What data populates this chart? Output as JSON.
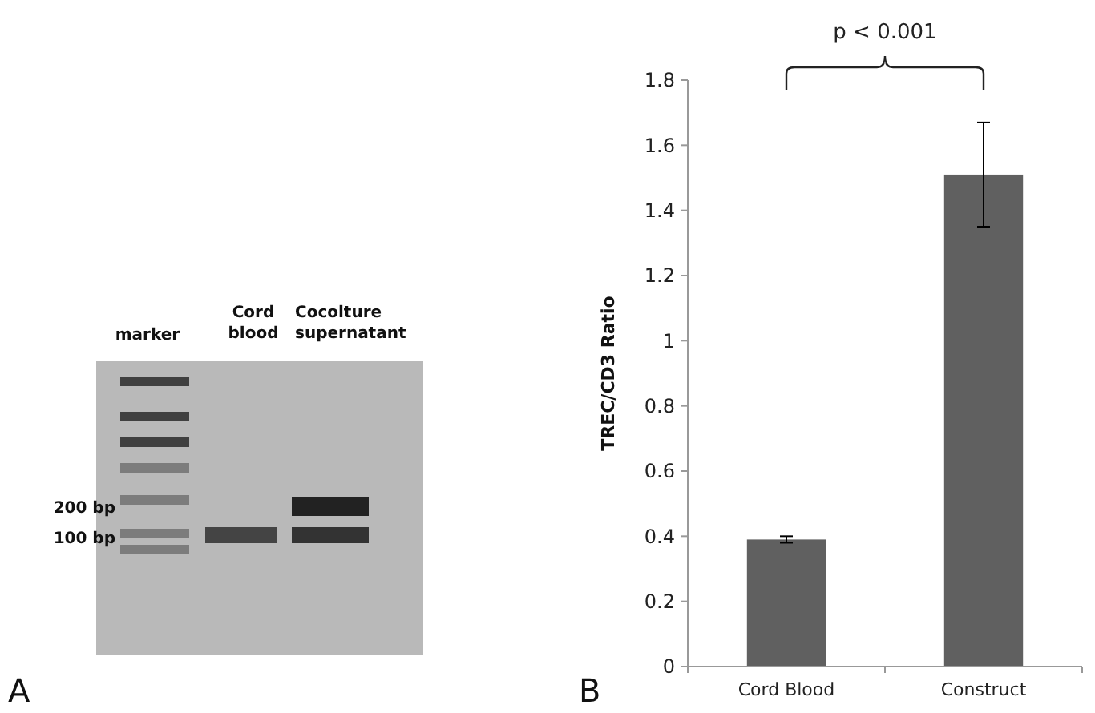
{
  "chart_data": [
    {
      "type": "other",
      "annotations": [
        "marker",
        "Cord blood",
        "Cocolture supernatant",
        "200 bp",
        "100 bp",
        "A"
      ]
    },
    {
      "type": "bar",
      "categories": [
        "Cord Blood",
        "Construct"
      ],
      "values": [
        0.39,
        1.51
      ],
      "errors": [
        0.01,
        0.16
      ],
      "color": "#606060",
      "ylabel": "TREC/CD3 Ratio",
      "ylim": [
        0,
        1.8
      ],
      "yticks": [
        0,
        0.2,
        0.4,
        0.6,
        0.8,
        1,
        1.2,
        1.4,
        1.6,
        1.8
      ],
      "grid": false,
      "annotations": [
        "p < 0.001",
        "B"
      ]
    }
  ]
}
